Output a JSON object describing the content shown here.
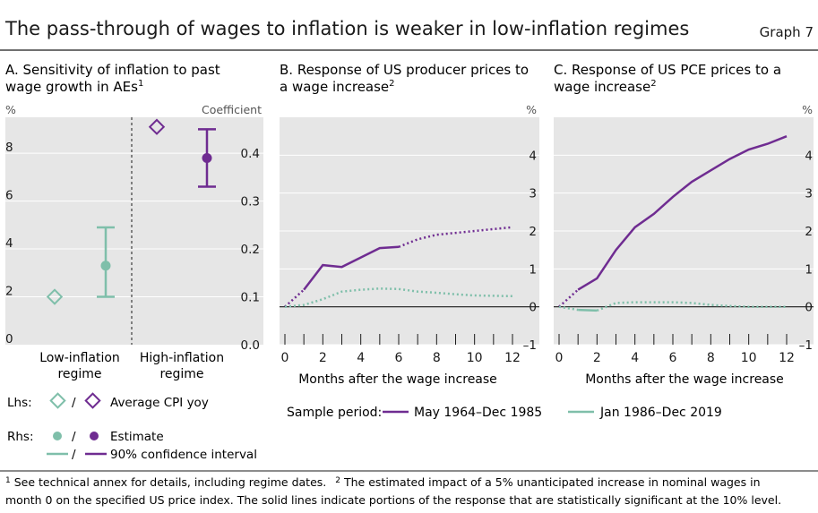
{
  "header": {
    "title": "The pass-through of wages to inflation is weaker in low-inflation regimes",
    "graph_label": "Graph 7"
  },
  "colors": {
    "purple": "#6f2c91",
    "green": "#7fbfaa",
    "panel_bg": "#e6e6e6",
    "grid": "#ffffff",
    "text": "#1a1a1a",
    "axis_label": "#555555"
  },
  "footnote": {
    "line1_a": "See technical annex for details, including regime dates.",
    "line1_b": "The estimated impact of a 5% unanticipated increase in nominal wages in",
    "line2": "month  0 on the specified US price index. The solid lines indicate portions of the response that are statistically significant at the 10% level.",
    "mark1": "1",
    "mark2": "2"
  },
  "chart_data": [
    {
      "id": "A",
      "type": "scatter",
      "title": "A. Sensitivity of inflation to past",
      "title_line2": "wage growth in AEs",
      "title_sup": "1",
      "left_unit": "%",
      "right_unit": "Coefficient",
      "left_ylim": [
        0,
        9.5
      ],
      "right_ylim": [
        0,
        0.475
      ],
      "left_ticks": [
        "0",
        "2",
        "4",
        "6",
        "8"
      ],
      "right_ticks": [
        "0.0",
        "0.1",
        "0.2",
        "0.3",
        "0.4"
      ],
      "categories": [
        {
          "line1": "Low-inflation",
          "line2": "regime"
        },
        {
          "line1": "High-inflation",
          "line2": "regime"
        }
      ],
      "avg_cpi": [
        2.0,
        9.1
      ],
      "estimate": [
        0.165,
        0.39
      ],
      "ci": [
        [
          0.1,
          0.245
        ],
        [
          0.33,
          0.45
        ]
      ],
      "legend": {
        "lhs_label": "Lhs:",
        "rhs_label": "Rhs:",
        "slash": "/",
        "avg_cpi": "Average CPI yoy",
        "estimate": "Estimate",
        "ci": "90% confidence interval"
      }
    },
    {
      "id": "B",
      "type": "line",
      "title": "B. Response of US producer prices to",
      "title_line2": "a wage increase",
      "title_sup": "2",
      "unit": "%",
      "ylim": [
        -1,
        5
      ],
      "yticks": [
        "–1",
        "0",
        "1",
        "2",
        "3",
        "4"
      ],
      "x": [
        0,
        1,
        2,
        3,
        4,
        5,
        6,
        7,
        8,
        9,
        10,
        11,
        12
      ],
      "xticks": [
        "0",
        "2",
        "4",
        "6",
        "8",
        "10",
        "12"
      ],
      "xlabel": "Months after the wage increase",
      "series": [
        {
          "name": "May 1964–Dec 1985",
          "color": "purple",
          "values": [
            0.0,
            0.45,
            1.1,
            1.05,
            1.3,
            1.55,
            1.58,
            1.78,
            1.9,
            1.95,
            2.0,
            2.05,
            2.1
          ],
          "significant_until": 6
        },
        {
          "name": "Jan 1986–Dec 2019",
          "color": "green",
          "values": [
            0.0,
            0.05,
            0.2,
            0.4,
            0.45,
            0.48,
            0.47,
            0.4,
            0.37,
            0.33,
            0.3,
            0.29,
            0.28
          ],
          "significant_until": null
        }
      ]
    },
    {
      "id": "C",
      "type": "line",
      "title": "C. Response of US PCE prices to a",
      "title_line2": "wage increase",
      "title_sup": "2",
      "unit": "%",
      "ylim": [
        -1,
        5
      ],
      "yticks": [
        "–1",
        "0",
        "1",
        "2",
        "3",
        "4"
      ],
      "x": [
        0,
        1,
        2,
        3,
        4,
        5,
        6,
        7,
        8,
        9,
        10,
        11,
        12
      ],
      "xticks": [
        "0",
        "2",
        "4",
        "6",
        "8",
        "10",
        "12"
      ],
      "xlabel": "Months after the wage increase",
      "series": [
        {
          "name": "May 1964–Dec 1985",
          "color": "purple",
          "values": [
            0.0,
            0.45,
            0.75,
            1.5,
            2.1,
            2.45,
            2.9,
            3.3,
            3.6,
            3.9,
            4.15,
            4.3,
            4.5
          ],
          "significant_until": 12
        },
        {
          "name": "Jan 1986–Dec 2019",
          "color": "green",
          "values": [
            0.0,
            -0.08,
            -0.1,
            0.1,
            0.12,
            0.12,
            0.12,
            0.1,
            0.05,
            0.02,
            0.0,
            0.0,
            0.0
          ],
          "significant_until": 2
        }
      ]
    }
  ],
  "sample_legend": {
    "label": "Sample period:",
    "items": [
      "May 1964–Dec 1985",
      "Jan 1986–Dec 2019"
    ]
  }
}
